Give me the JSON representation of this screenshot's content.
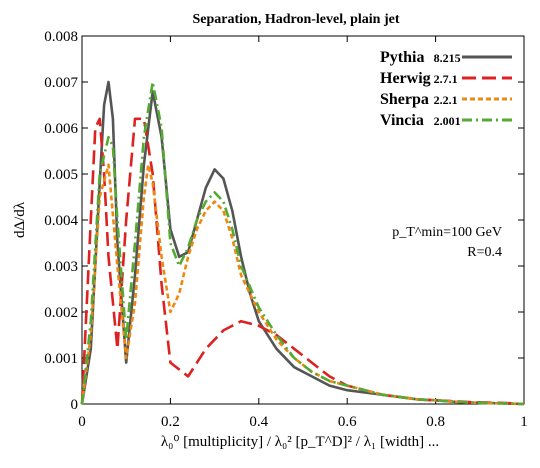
{
  "chart_data": {
    "type": "line",
    "title": "Separation, Hadron-level, plain jet",
    "xlabel": "λ₀⁰ [multiplicity] / λ₀² [p_T^D]² / λ₁ [width] ...",
    "ylabel": "dΔ/dλ",
    "xlim": [
      0,
      1
    ],
    "ylim": [
      0,
      0.008
    ],
    "x_ticks": [
      "0",
      "0.2",
      "0.4",
      "0.6",
      "0.8",
      "1"
    ],
    "y_ticks": [
      "0",
      "0.001",
      "0.002",
      "0.003",
      "0.004",
      "0.005",
      "0.006",
      "0.007",
      "0.008"
    ],
    "legend_position": "top-right",
    "legend": [
      {
        "name": "Pythia",
        "version": "8.215",
        "color": "#555555",
        "dash": "solid"
      },
      {
        "name": "Herwig",
        "version": "2.7.1",
        "color": "#dd2222",
        "dash": "long-dash"
      },
      {
        "name": "Sherpa",
        "version": "2.2.1",
        "color": "#ee8811",
        "dash": "short-dash"
      },
      {
        "name": "Vincia",
        "version": "2.001",
        "color": "#55aa33",
        "dash": "dash-dot"
      }
    ],
    "annotations": [
      "p_T^min=100 GeV",
      "R=0.4"
    ],
    "series": [
      {
        "name": "Pythia",
        "x": [
          0.0,
          0.02,
          0.04,
          0.05,
          0.06,
          0.07,
          0.08,
          0.1,
          0.12,
          0.14,
          0.16,
          0.18,
          0.2,
          0.22,
          0.24,
          0.26,
          0.28,
          0.3,
          0.32,
          0.34,
          0.36,
          0.38,
          0.4,
          0.44,
          0.48,
          0.52,
          0.56,
          0.6,
          0.64,
          0.68,
          0.72,
          0.76,
          0.8,
          0.84,
          0.88,
          0.92,
          0.96,
          1.0
        ],
        "y": [
          0.0,
          0.0012,
          0.0048,
          0.0065,
          0.007,
          0.0062,
          0.0035,
          0.0009,
          0.0028,
          0.0052,
          0.0068,
          0.0058,
          0.0038,
          0.0032,
          0.0033,
          0.004,
          0.0047,
          0.0051,
          0.0049,
          0.0042,
          0.0032,
          0.0024,
          0.0018,
          0.0012,
          0.0008,
          0.0006,
          0.0004,
          0.0003,
          0.00025,
          0.0002,
          0.00015,
          0.0001,
          8e-05,
          5e-05,
          3e-05,
          2e-05,
          1e-05,
          0.0
        ]
      },
      {
        "name": "Herwig",
        "x": [
          0.0,
          0.02,
          0.03,
          0.04,
          0.05,
          0.06,
          0.08,
          0.1,
          0.12,
          0.14,
          0.16,
          0.18,
          0.2,
          0.24,
          0.28,
          0.32,
          0.36,
          0.4,
          0.44,
          0.48,
          0.52,
          0.56,
          0.6,
          0.64,
          0.68,
          0.72,
          0.76,
          0.8,
          0.84,
          0.88,
          0.92,
          0.96,
          1.0
        ],
        "y": [
          0.0,
          0.004,
          0.006,
          0.0062,
          0.005,
          0.0032,
          0.0012,
          0.004,
          0.0062,
          0.0062,
          0.005,
          0.0026,
          0.0009,
          0.0006,
          0.0012,
          0.0016,
          0.0018,
          0.0017,
          0.0015,
          0.0012,
          0.0009,
          0.0006,
          0.0004,
          0.0003,
          0.0002,
          0.00015,
          0.0001,
          8e-05,
          6e-05,
          4e-05,
          3e-05,
          2e-05,
          0.0
        ]
      },
      {
        "name": "Sherpa",
        "x": [
          0.0,
          0.02,
          0.04,
          0.06,
          0.08,
          0.1,
          0.12,
          0.14,
          0.15,
          0.16,
          0.18,
          0.2,
          0.22,
          0.24,
          0.26,
          0.28,
          0.3,
          0.32,
          0.34,
          0.36,
          0.4,
          0.44,
          0.48,
          0.52,
          0.56,
          0.6,
          0.64,
          0.68,
          0.72,
          0.76,
          0.8,
          0.84,
          0.88,
          0.92,
          0.96,
          1.0
        ],
        "y": [
          0.0,
          0.0015,
          0.0045,
          0.0052,
          0.003,
          0.001,
          0.0022,
          0.0045,
          0.0052,
          0.0048,
          0.0032,
          0.002,
          0.0024,
          0.0032,
          0.0038,
          0.0042,
          0.0044,
          0.0042,
          0.0036,
          0.0028,
          0.002,
          0.0014,
          0.001,
          0.0007,
          0.0005,
          0.0004,
          0.0003,
          0.0002,
          0.00015,
          0.0001,
          8e-05,
          5e-05,
          3e-05,
          2e-05,
          1e-05,
          0.0
        ]
      },
      {
        "name": "Vincia",
        "x": [
          0.0,
          0.02,
          0.04,
          0.06,
          0.07,
          0.08,
          0.1,
          0.12,
          0.14,
          0.16,
          0.18,
          0.2,
          0.22,
          0.24,
          0.26,
          0.28,
          0.3,
          0.32,
          0.34,
          0.36,
          0.4,
          0.44,
          0.48,
          0.52,
          0.56,
          0.6,
          0.64,
          0.68,
          0.72,
          0.76,
          0.8,
          0.84,
          0.88,
          0.92,
          0.96,
          1.0
        ],
        "y": [
          0.0,
          0.0018,
          0.005,
          0.0058,
          0.0056,
          0.004,
          0.0014,
          0.0035,
          0.0058,
          0.007,
          0.006,
          0.0035,
          0.003,
          0.0034,
          0.004,
          0.0044,
          0.0046,
          0.0044,
          0.0038,
          0.003,
          0.0021,
          0.0015,
          0.001,
          0.0007,
          0.0005,
          0.0004,
          0.0003,
          0.0002,
          0.00015,
          0.0001,
          8e-05,
          5e-05,
          3e-05,
          2e-05,
          1e-05,
          0.0
        ]
      }
    ]
  }
}
